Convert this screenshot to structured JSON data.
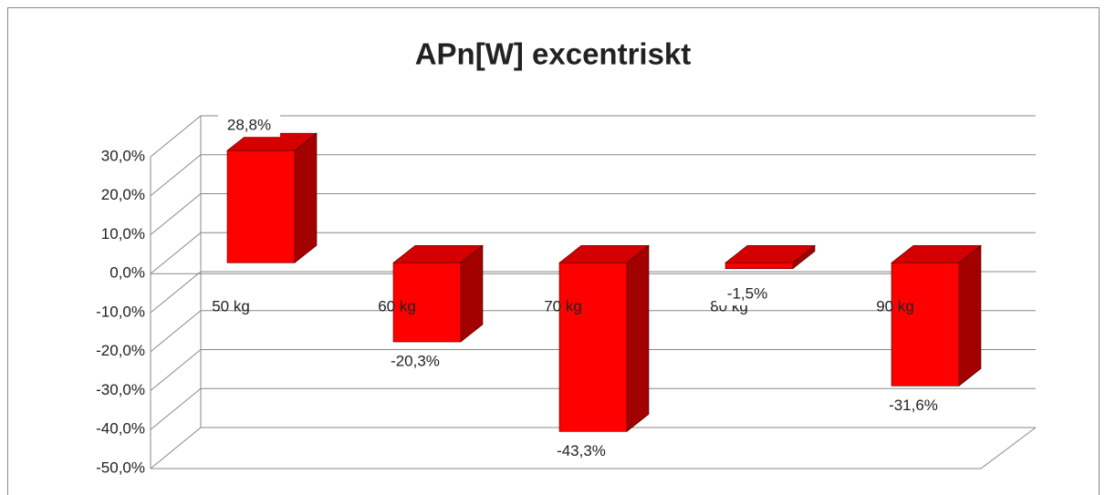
{
  "chart_data": {
    "type": "bar3d",
    "title": "APn[W] excentriskt",
    "categories": [
      "50 kg",
      "60 kg",
      "70 kg",
      "80 kg",
      "90 kg"
    ],
    "values": [
      28.8,
      -20.3,
      -43.3,
      -1.5,
      -31.6
    ],
    "value_labels": [
      "28,8%",
      "-20,3%",
      "-43,3%",
      "-1,5%",
      "-31,6%"
    ],
    "color": "#ff0000",
    "ylim": [
      -50,
      30
    ],
    "yticks": [
      {
        "value": -50,
        "label": "-50,0%"
      },
      {
        "value": -40,
        "label": "-40,0%"
      },
      {
        "value": -30,
        "label": "-30,0%"
      },
      {
        "value": -20,
        "label": "-20,0%"
      },
      {
        "value": -10,
        "label": "-10,0%"
      },
      {
        "value": 0,
        "label": "0,0%"
      },
      {
        "value": 10,
        "label": "10,0%"
      },
      {
        "value": 20,
        "label": "20,0%"
      },
      {
        "value": 30,
        "label": "30,0%"
      }
    ],
    "grid": true
  }
}
